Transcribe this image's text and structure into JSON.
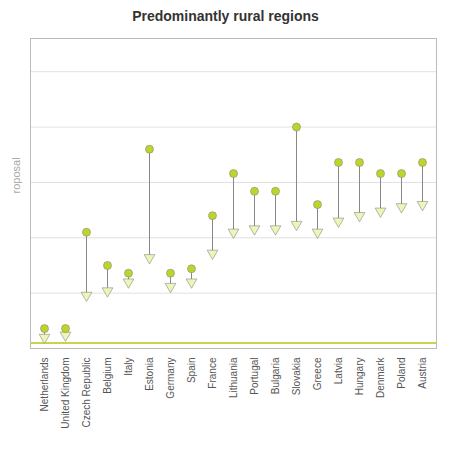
{
  "chart_data": {
    "type": "dumbbell",
    "title": "Predominantly rural regions",
    "ylabel": "roposal",
    "categories": [
      "Netherlands",
      "United Kingdom",
      "Czech Republic",
      "Belgium",
      "Italy",
      "Estonia",
      "Germany",
      "Spain",
      "France",
      "Lithuania",
      "Portugal",
      "Bulgaria",
      "Slovakia",
      "Greece",
      "Latvia",
      "Hungary",
      "Denmark",
      "Poland",
      "Austria"
    ],
    "color": "#888888",
    "series": [
      {
        "color": "#eef5b8",
        "marker": "triangle-down",
        "values": [
          0.1,
          0.12,
          0.48,
          0.52,
          0.6,
          0.82,
          0.56,
          0.6,
          0.86,
          1.05,
          1.08,
          1.08,
          1.12,
          1.05,
          1.15,
          1.2,
          1.24,
          1.28,
          1.3
        ]
      },
      {
        "color": "#bfd42a",
        "marker": "circle",
        "values": [
          0.18,
          0.18,
          1.05,
          0.75,
          0.68,
          1.8,
          0.68,
          0.72,
          1.2,
          1.58,
          1.42,
          1.42,
          2.0,
          1.3,
          1.68,
          1.68,
          1.58,
          1.58,
          1.68
        ]
      }
    ],
    "reference_line": {
      "value": 0.05,
      "color": "#c8d44e"
    },
    "ylim": [
      0,
      2.8
    ],
    "yticks": [
      0,
      0.5,
      1,
      1.5,
      2,
      2.5
    ],
    "grid": true,
    "tick_labels": "x"
  }
}
